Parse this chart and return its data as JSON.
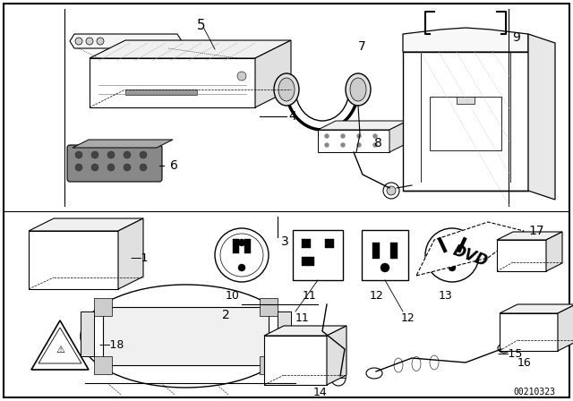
{
  "bg_color": "#ffffff",
  "part_number": "00210323",
  "black": "#000000",
  "gray": "#888888",
  "lightgray": "#cccccc",
  "dotgray": "#aaaaaa"
}
